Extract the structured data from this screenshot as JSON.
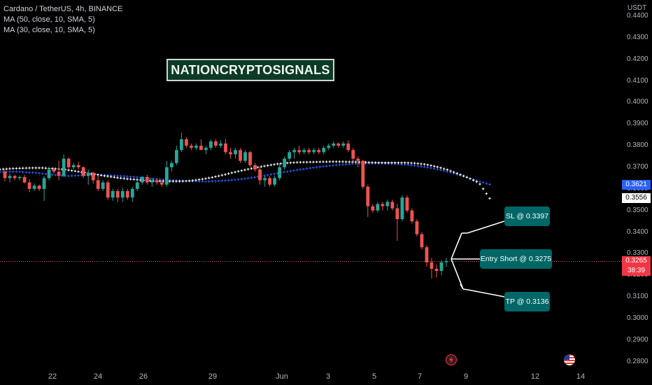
{
  "legend": {
    "symbol": "Cardano / TetherUS, 4h, BINANCE",
    "ma1": "MA (50, close, 10, SMA, 5)",
    "ma2": "MA (30, close, 10, SMA, 5)"
  },
  "watermark": "NATIONCRYPTOSIGNALS",
  "axis": {
    "currency": "USDT",
    "y_ticks": [
      "0.4400",
      "0.4300",
      "0.4200",
      "0.4100",
      "0.4000",
      "0.3900",
      "0.3800",
      "0.3700",
      "0.3600",
      "0.3500",
      "0.3400",
      "0.3300",
      "0.3200",
      "0.3100",
      "0.3000",
      "0.2900",
      "0.2800"
    ],
    "x_ticks": [
      "22",
      "24",
      "26",
      "29",
      "Jun",
      "3",
      "5",
      "7",
      "9",
      "12",
      "14"
    ]
  },
  "price_tags": {
    "ma_blue": "0.3621",
    "ma_white": "0.3556",
    "current_price": "0.3265",
    "countdown": "38:39"
  },
  "callouts": {
    "sl": "SL @ 0.3397",
    "entry": "Entry Short @ 0.3275",
    "tp": "TP @ 0.3136"
  },
  "colors": {
    "background": "#000000",
    "candle_up": "#26a69a",
    "candle_down": "#ef5350",
    "ma_blue": "#2962ff",
    "ma_white": "#ffffff",
    "callout": "#006666",
    "watermark_bg": "#0b3a26"
  },
  "icons": [
    "lightning-event-icon",
    "us-flag-event-icon"
  ],
  "chart_data": {
    "type": "candlestick",
    "title": "Cardano / TetherUS, 4h, BINANCE",
    "ylim": [
      0.275,
      0.445
    ],
    "current_price": 0.3265,
    "entry": 0.3275,
    "stop_loss": 0.3397,
    "take_profit": 0.3136,
    "candles": [
      [
        0.368,
        0.369,
        0.3635,
        0.365
      ],
      [
        0.365,
        0.367,
        0.363,
        0.366
      ],
      [
        0.366,
        0.3665,
        0.364,
        0.365
      ],
      [
        0.365,
        0.3662,
        0.364,
        0.3655
      ],
      [
        0.3655,
        0.3665,
        0.3625,
        0.363
      ],
      [
        0.363,
        0.3645,
        0.3585,
        0.36
      ],
      [
        0.36,
        0.3625,
        0.359,
        0.3615
      ],
      [
        0.3615,
        0.362,
        0.359,
        0.36
      ],
      [
        0.36,
        0.366,
        0.3545,
        0.365
      ],
      [
        0.365,
        0.37,
        0.364,
        0.369
      ],
      [
        0.369,
        0.37,
        0.367,
        0.368
      ],
      [
        0.368,
        0.373,
        0.364,
        0.366
      ],
      [
        0.366,
        0.376,
        0.3655,
        0.374
      ],
      [
        0.374,
        0.3745,
        0.3695,
        0.37
      ],
      [
        0.37,
        0.372,
        0.369,
        0.371
      ],
      [
        0.371,
        0.3725,
        0.369,
        0.37
      ],
      [
        0.37,
        0.3705,
        0.365,
        0.366
      ],
      [
        0.366,
        0.369,
        0.362,
        0.3675
      ],
      [
        0.3675,
        0.368,
        0.3625,
        0.364
      ],
      [
        0.364,
        0.366,
        0.359,
        0.36
      ],
      [
        0.36,
        0.364,
        0.359,
        0.363
      ],
      [
        0.363,
        0.364,
        0.355,
        0.356
      ],
      [
        0.356,
        0.36,
        0.3545,
        0.359
      ],
      [
        0.359,
        0.36,
        0.354,
        0.356
      ],
      [
        0.356,
        0.3605,
        0.354,
        0.359
      ],
      [
        0.359,
        0.36,
        0.355,
        0.356
      ],
      [
        0.356,
        0.361,
        0.354,
        0.36
      ],
      [
        0.36,
        0.364,
        0.359,
        0.363
      ],
      [
        0.363,
        0.366,
        0.362,
        0.3655
      ],
      [
        0.3655,
        0.3665,
        0.362,
        0.363
      ],
      [
        0.363,
        0.365,
        0.361,
        0.364
      ],
      [
        0.364,
        0.3645,
        0.362,
        0.363
      ],
      [
        0.363,
        0.364,
        0.361,
        0.362
      ],
      [
        0.362,
        0.373,
        0.361,
        0.37
      ],
      [
        0.37,
        0.373,
        0.368,
        0.372
      ],
      [
        0.372,
        0.38,
        0.371,
        0.378
      ],
      [
        0.378,
        0.386,
        0.377,
        0.383
      ],
      [
        0.383,
        0.384,
        0.379,
        0.38
      ],
      [
        0.38,
        0.381,
        0.378,
        0.379
      ],
      [
        0.379,
        0.381,
        0.378,
        0.38
      ],
      [
        0.38,
        0.383,
        0.379,
        0.378
      ],
      [
        0.378,
        0.38,
        0.376,
        0.379
      ],
      [
        0.379,
        0.383,
        0.378,
        0.382
      ],
      [
        0.382,
        0.383,
        0.379,
        0.38
      ],
      [
        0.38,
        0.3825,
        0.379,
        0.381
      ],
      [
        0.381,
        0.383,
        0.376,
        0.377
      ],
      [
        0.377,
        0.379,
        0.374,
        0.376
      ],
      [
        0.376,
        0.379,
        0.374,
        0.378
      ],
      [
        0.378,
        0.379,
        0.372,
        0.373
      ],
      [
        0.373,
        0.378,
        0.372,
        0.377
      ],
      [
        0.377,
        0.3775,
        0.37,
        0.371
      ],
      [
        0.371,
        0.372,
        0.368,
        0.369
      ],
      [
        0.369,
        0.37,
        0.362,
        0.364
      ],
      [
        0.364,
        0.366,
        0.361,
        0.365
      ],
      [
        0.365,
        0.366,
        0.361,
        0.362
      ],
      [
        0.362,
        0.366,
        0.361,
        0.365
      ],
      [
        0.365,
        0.372,
        0.364,
        0.37
      ],
      [
        0.37,
        0.375,
        0.369,
        0.374
      ],
      [
        0.374,
        0.378,
        0.373,
        0.377
      ],
      [
        0.377,
        0.379,
        0.374,
        0.378
      ],
      [
        0.378,
        0.38,
        0.376,
        0.377
      ],
      [
        0.377,
        0.379,
        0.376,
        0.378
      ],
      [
        0.378,
        0.379,
        0.376,
        0.377
      ],
      [
        0.377,
        0.379,
        0.376,
        0.378
      ],
      [
        0.378,
        0.379,
        0.376,
        0.377
      ],
      [
        0.377,
        0.38,
        0.376,
        0.379
      ],
      [
        0.379,
        0.381,
        0.378,
        0.38
      ],
      [
        0.38,
        0.382,
        0.379,
        0.381
      ],
      [
        0.381,
        0.3815,
        0.379,
        0.38
      ],
      [
        0.38,
        0.382,
        0.379,
        0.381
      ],
      [
        0.381,
        0.3825,
        0.377,
        0.378
      ],
      [
        0.378,
        0.379,
        0.372,
        0.374
      ],
      [
        0.374,
        0.375,
        0.37,
        0.373
      ],
      [
        0.373,
        0.3735,
        0.36,
        0.361
      ],
      [
        0.361,
        0.362,
        0.347,
        0.352
      ],
      [
        0.352,
        0.353,
        0.349,
        0.35
      ],
      [
        0.35,
        0.354,
        0.349,
        0.353
      ],
      [
        0.353,
        0.354,
        0.35,
        0.352
      ],
      [
        0.352,
        0.355,
        0.35,
        0.354
      ],
      [
        0.354,
        0.355,
        0.35,
        0.351
      ],
      [
        0.351,
        0.353,
        0.336,
        0.346
      ],
      [
        0.346,
        0.357,
        0.345,
        0.356
      ],
      [
        0.356,
        0.357,
        0.349,
        0.35
      ],
      [
        0.35,
        0.351,
        0.344,
        0.345
      ],
      [
        0.345,
        0.346,
        0.338,
        0.339
      ],
      [
        0.339,
        0.34,
        0.332,
        0.333
      ],
      [
        0.333,
        0.334,
        0.324,
        0.326
      ],
      [
        0.326,
        0.328,
        0.3185,
        0.323
      ],
      [
        0.323,
        0.325,
        0.319,
        0.322
      ],
      [
        0.322,
        0.327,
        0.32,
        0.326
      ],
      [
        0.326,
        0.328,
        0.324,
        0.3265
      ]
    ],
    "ma_50_points": [
      0.3678,
      0.3679,
      0.368,
      0.3677,
      0.3675,
      0.3671,
      0.3666,
      0.3662,
      0.366,
      0.3662,
      0.3664,
      0.3665,
      0.3664,
      0.3662,
      0.366,
      0.3657,
      0.3654,
      0.365,
      0.3646,
      0.3643,
      0.364,
      0.3638,
      0.3636,
      0.3635,
      0.3634,
      0.3636,
      0.3638,
      0.3641,
      0.3645,
      0.365,
      0.3656,
      0.3663,
      0.367,
      0.3677,
      0.3684,
      0.369,
      0.3696,
      0.3701,
      0.3706,
      0.371,
      0.3713,
      0.3716,
      0.3718,
      0.3719,
      0.3719,
      0.3718,
      0.3716,
      0.3713,
      0.3709,
      0.3704,
      0.3698,
      0.369,
      0.3681,
      0.367,
      0.3658,
      0.3645,
      0.3632,
      0.3621
    ],
    "ma_30_points": [
      0.369,
      0.3694,
      0.3696,
      0.3697,
      0.3697,
      0.3694,
      0.369,
      0.3683,
      0.3675,
      0.3667,
      0.3659,
      0.3652,
      0.3646,
      0.3642,
      0.3638,
      0.3636,
      0.3635,
      0.3635,
      0.3638,
      0.3645,
      0.3654,
      0.3665,
      0.3677,
      0.3688,
      0.3698,
      0.3707,
      0.3715,
      0.372,
      0.3723,
      0.3724,
      0.3725,
      0.3726,
      0.3726,
      0.3725,
      0.3724,
      0.3722,
      0.3721,
      0.3721,
      0.3721,
      0.3719,
      0.3713,
      0.3703,
      0.3689,
      0.3671,
      0.3651,
      0.3628,
      0.3556
    ]
  }
}
